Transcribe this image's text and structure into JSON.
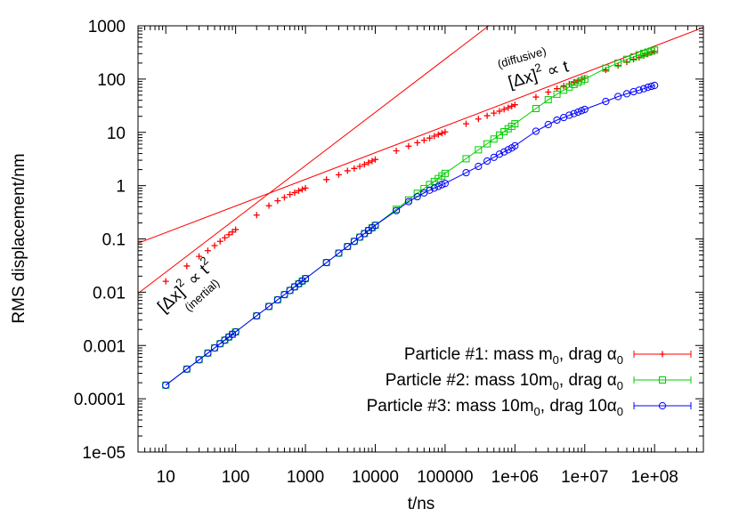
{
  "chart_data": {
    "type": "scatter",
    "xlabel": "t/ns",
    "ylabel": "RMS displacement/nm",
    "xscale": "log",
    "yscale": "log",
    "xlim": [
      4,
      500000000
    ],
    "ylim": [
      1e-05,
      1000
    ],
    "grid": false,
    "legend_position": "bottom-right",
    "x_ticks": [
      10,
      100,
      1000,
      10000,
      100000,
      1000000,
      10000000,
      100000000
    ],
    "x_tick_labels": [
      "10",
      "100",
      "1000",
      "10000",
      "100000",
      "1e+06",
      "1e+07",
      "1e+08"
    ],
    "y_ticks": [
      1e-05,
      0.0001,
      0.001,
      0.01,
      0.1,
      1,
      10,
      100,
      1000
    ],
    "y_tick_labels": [
      "1e-05",
      "0.0001",
      "0.001",
      "0.01",
      "0.1",
      "1",
      "10",
      "100",
      "1000"
    ],
    "colors": {
      "particle1": "#ff0000",
      "particle2": "#00cc00",
      "particle3": "#0000ff",
      "fit": "#ff0000"
    },
    "series": [
      {
        "name": "Particle #1: mass m0, drag α0",
        "legend": {
          "prefix": "Particle #1: mass ",
          "mass_coef": "",
          "mass": "m",
          "mass_sub": "0",
          "mid": ", drag ",
          "drag_coef": "",
          "drag": "α",
          "drag_sub": "0"
        },
        "marker": "plus",
        "color": "#ff0000",
        "x": [
          10,
          20,
          30,
          40,
          50,
          60,
          70,
          80,
          90,
          100,
          200,
          300,
          400,
          500,
          600,
          700,
          800,
          900,
          1000,
          2000,
          3000,
          4000,
          5000,
          6000,
          7000,
          8000,
          9000,
          10000,
          20000,
          30000,
          40000,
          50000,
          60000,
          70000,
          80000,
          90000,
          100000,
          200000,
          300000,
          400000,
          500000,
          600000,
          700000,
          800000,
          900000,
          1000000,
          2000000,
          3000000,
          4000000,
          5000000,
          6000000,
          7000000,
          8000000,
          9000000,
          10000000,
          20000000,
          30000000,
          40000000,
          50000000,
          60000000,
          70000000,
          80000000,
          90000000,
          100000000
        ],
        "y": [
          0.016,
          0.031,
          0.047,
          0.06,
          0.075,
          0.09,
          0.105,
          0.12,
          0.135,
          0.15,
          0.28,
          0.42,
          0.52,
          0.6,
          0.68,
          0.74,
          0.8,
          0.85,
          0.9,
          1.3,
          1.6,
          1.9,
          2.1,
          2.3,
          2.5,
          2.7,
          2.9,
          3.1,
          4.5,
          5.5,
          6.4,
          7.1,
          7.8,
          8.5,
          9.1,
          9.6,
          10.2,
          14.5,
          17.8,
          20.5,
          23,
          25,
          27,
          29,
          31,
          33,
          46,
          57,
          66,
          74,
          81,
          87,
          93,
          98,
          104,
          148,
          180,
          210,
          235,
          255,
          275,
          295,
          315,
          330
        ]
      },
      {
        "name": "Particle #2: mass 10m0, drag α0",
        "legend": {
          "prefix": "Particle #2: mass ",
          "mass_coef": "10",
          "mass": "m",
          "mass_sub": "0",
          "mid": ", drag ",
          "drag_coef": "",
          "drag": "α",
          "drag_sub": "0"
        },
        "marker": "square",
        "color": "#00cc00",
        "x": [
          10,
          20,
          30,
          40,
          50,
          60,
          70,
          80,
          90,
          100,
          200,
          300,
          400,
          500,
          600,
          700,
          800,
          900,
          1000,
          2000,
          3000,
          4000,
          5000,
          6000,
          7000,
          8000,
          9000,
          10000,
          20000,
          30000,
          40000,
          50000,
          60000,
          70000,
          80000,
          90000,
          100000,
          200000,
          300000,
          400000,
          500000,
          600000,
          700000,
          800000,
          900000,
          1000000,
          2000000,
          3000000,
          4000000,
          5000000,
          6000000,
          7000000,
          8000000,
          9000000,
          10000000,
          20000000,
          30000000,
          40000000,
          50000000,
          60000000,
          70000000,
          80000000,
          90000000,
          100000000
        ],
        "y": [
          0.00018,
          0.00036,
          0.00054,
          0.00072,
          0.0009,
          0.00108,
          0.00126,
          0.00144,
          0.00162,
          0.0018,
          0.0036,
          0.0054,
          0.0072,
          0.009,
          0.0108,
          0.0126,
          0.0144,
          0.0162,
          0.018,
          0.036,
          0.054,
          0.072,
          0.09,
          0.108,
          0.126,
          0.144,
          0.162,
          0.18,
          0.36,
          0.54,
          0.72,
          0.88,
          1.05,
          1.2,
          1.36,
          1.52,
          1.7,
          3.2,
          4.7,
          6.1,
          7.5,
          8.9,
          10.3,
          11.7,
          13,
          14.5,
          28,
          41,
          52,
          62,
          71,
          79,
          86,
          93,
          100,
          160,
          200,
          235,
          260,
          285,
          305,
          320,
          335,
          350
        ]
      },
      {
        "name": "Particle #3: mass 10m0, drag 10α0",
        "legend": {
          "prefix": "Particle #3: mass ",
          "mass_coef": "10",
          "mass": "m",
          "mass_sub": "0",
          "mid": ", drag ",
          "drag_coef": "10",
          "drag": "α",
          "drag_sub": "0"
        },
        "marker": "circle",
        "color": "#0000ff",
        "x": [
          10,
          20,
          30,
          40,
          50,
          60,
          70,
          80,
          90,
          100,
          200,
          300,
          400,
          500,
          600,
          700,
          800,
          900,
          1000,
          2000,
          3000,
          4000,
          5000,
          6000,
          7000,
          8000,
          9000,
          10000,
          20000,
          30000,
          40000,
          50000,
          60000,
          70000,
          80000,
          90000,
          100000,
          200000,
          300000,
          400000,
          500000,
          600000,
          700000,
          800000,
          900000,
          1000000,
          2000000,
          3000000,
          4000000,
          5000000,
          6000000,
          7000000,
          8000000,
          9000000,
          10000000,
          20000000,
          30000000,
          40000000,
          50000000,
          60000000,
          70000000,
          80000000,
          90000000,
          100000000
        ],
        "y": [
          0.00018,
          0.00036,
          0.00054,
          0.00072,
          0.0009,
          0.00108,
          0.00126,
          0.00144,
          0.00162,
          0.0018,
          0.0036,
          0.0054,
          0.0072,
          0.009,
          0.0108,
          0.0126,
          0.0144,
          0.0162,
          0.018,
          0.036,
          0.054,
          0.072,
          0.09,
          0.108,
          0.126,
          0.144,
          0.162,
          0.18,
          0.34,
          0.5,
          0.62,
          0.73,
          0.82,
          0.9,
          0.97,
          1.04,
          1.1,
          1.75,
          2.3,
          2.9,
          3.4,
          3.9,
          4.3,
          4.7,
          5.1,
          5.6,
          10.5,
          14,
          17,
          19,
          21,
          22.5,
          24,
          25.5,
          27,
          38,
          47,
          53,
          58,
          62,
          66,
          70,
          73,
          76
        ]
      }
    ],
    "fit_lines": [
      {
        "name": "inertial",
        "relation": "RMS ∝ t",
        "points": [
          [
            4,
            0.0095
          ],
          [
            4000000,
            9500
          ]
        ]
      },
      {
        "name": "diffusive",
        "relation": "RMS ∝ t^0.5",
        "points": [
          [
            4,
            0.083
          ],
          [
            500000000,
            930
          ]
        ]
      }
    ],
    "annotations": {
      "inertial": {
        "base": "[Δx]",
        "sup": "2",
        "op": " ∝ t",
        "sup2": "2",
        "note": "(inertial)"
      },
      "diffusive": {
        "base": "[Δx]",
        "sup": "2",
        "op": " ∝ t",
        "note": "(diffusive)"
      }
    }
  }
}
